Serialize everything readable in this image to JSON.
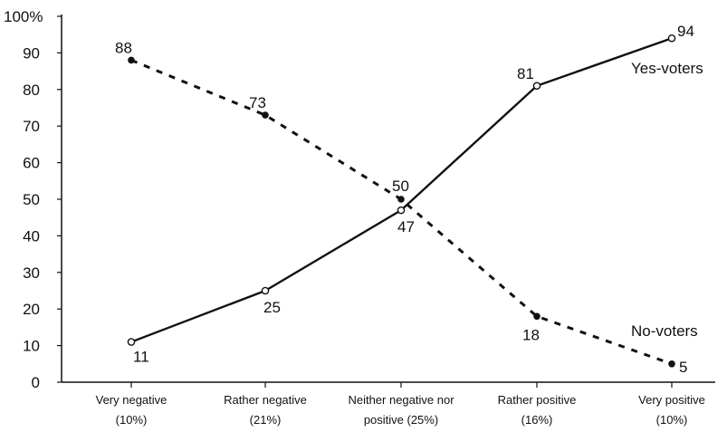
{
  "chart_data": {
    "type": "line",
    "y_unit_suffix": "%",
    "ylim": [
      0,
      100
    ],
    "yticks": [
      0,
      10,
      20,
      30,
      40,
      50,
      60,
      70,
      80,
      90,
      100
    ],
    "grid": false,
    "categories": [
      [
        "Very negative",
        "(10%)"
      ],
      [
        "Rather negative",
        "(21%)"
      ],
      [
        "Neither negative nor",
        "positive (25%)"
      ],
      [
        "Rather positive",
        "(16%)"
      ],
      [
        "Very positive",
        "(10%)"
      ]
    ],
    "series": [
      {
        "name": "Yes-voters",
        "style": "solid",
        "marker": "open-circle",
        "color": "#111111",
        "values": [
          11,
          25,
          47,
          81,
          94
        ]
      },
      {
        "name": "No-voters",
        "style": "dashed",
        "marker": "filled-circle",
        "color": "#111111",
        "values": [
          88,
          73,
          50,
          18,
          5
        ]
      }
    ]
  }
}
